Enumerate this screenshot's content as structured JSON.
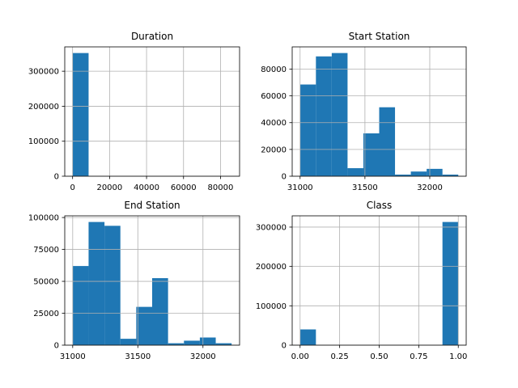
{
  "figure": {
    "bar_color": "#1f77b4",
    "grid_color": "#b0b0b0",
    "axis_color": "#000000"
  },
  "chart_data": [
    {
      "type": "bar",
      "title": "Duration",
      "xlabel": "",
      "ylabel": "",
      "grid": true,
      "bin_edges": [
        60,
        8655,
        17250,
        25845,
        34440,
        43035,
        51630,
        60225,
        68820,
        77415,
        86010
      ],
      "counts": [
        352000,
        300,
        60,
        20,
        8,
        4,
        2,
        2,
        1,
        1
      ],
      "xlim": [
        -4238,
        90308
      ],
      "ylim": [
        0,
        369600
      ],
      "xticks": [
        0,
        20000,
        40000,
        60000,
        80000
      ],
      "xtick_labels": [
        "0",
        "20000",
        "40000",
        "60000",
        "80000"
      ],
      "yticks": [
        0,
        100000,
        200000,
        300000
      ],
      "ytick_labels": [
        "0",
        "100000",
        "200000",
        "300000"
      ]
    },
    {
      "type": "bar",
      "title": "Start Station",
      "xlabel": "",
      "ylabel": "",
      "grid": true,
      "bin_edges": [
        31000,
        31122,
        31244,
        31366,
        31488,
        31610,
        31732,
        31854,
        31976,
        32098,
        32220
      ],
      "counts": [
        68500,
        89500,
        92000,
        6000,
        32000,
        51500,
        1200,
        3500,
        5500,
        1200
      ],
      "xlim": [
        30939,
        32281
      ],
      "ylim": [
        0,
        96600
      ],
      "xticks": [
        31000,
        31500,
        32000
      ],
      "xtick_labels": [
        "31000",
        "31500",
        "32000"
      ],
      "yticks": [
        0,
        20000,
        40000,
        60000,
        80000
      ],
      "ytick_labels": [
        "0",
        "20000",
        "40000",
        "60000",
        "80000"
      ]
    },
    {
      "type": "bar",
      "title": "End Station",
      "xlabel": "",
      "ylabel": "",
      "grid": true,
      "bin_edges": [
        31000,
        31122,
        31244,
        31366,
        31488,
        31610,
        31732,
        31854,
        31976,
        32098,
        32220
      ],
      "counts": [
        62000,
        96500,
        93500,
        5000,
        30000,
        52500,
        1500,
        3500,
        6000,
        1500
      ],
      "xlim": [
        30939,
        32281
      ],
      "ylim": [
        0,
        101325
      ],
      "xticks": [
        31000,
        31500,
        32000
      ],
      "xtick_labels": [
        "31000",
        "31500",
        "32000"
      ],
      "yticks": [
        0,
        25000,
        50000,
        75000,
        100000
      ],
      "ytick_labels": [
        "0",
        "25000",
        "50000",
        "75000",
        "100000"
      ]
    },
    {
      "type": "bar",
      "title": "Class",
      "xlabel": "",
      "ylabel": "",
      "grid": true,
      "bin_edges": [
        0,
        0.1,
        0.2,
        0.3,
        0.4,
        0.5,
        0.6,
        0.7,
        0.8,
        0.9,
        1.0
      ],
      "counts": [
        40000,
        0,
        0,
        0,
        0,
        0,
        0,
        0,
        0,
        313000
      ],
      "xlim": [
        -0.05,
        1.05
      ],
      "ylim": [
        0,
        328650
      ],
      "xticks": [
        0,
        0.25,
        0.5,
        0.75,
        1.0
      ],
      "xtick_labels": [
        "0.00",
        "0.25",
        "0.50",
        "0.75",
        "1.00"
      ],
      "yticks": [
        0,
        100000,
        200000,
        300000
      ],
      "ytick_labels": [
        "0",
        "100000",
        "200000",
        "300000"
      ]
    }
  ]
}
